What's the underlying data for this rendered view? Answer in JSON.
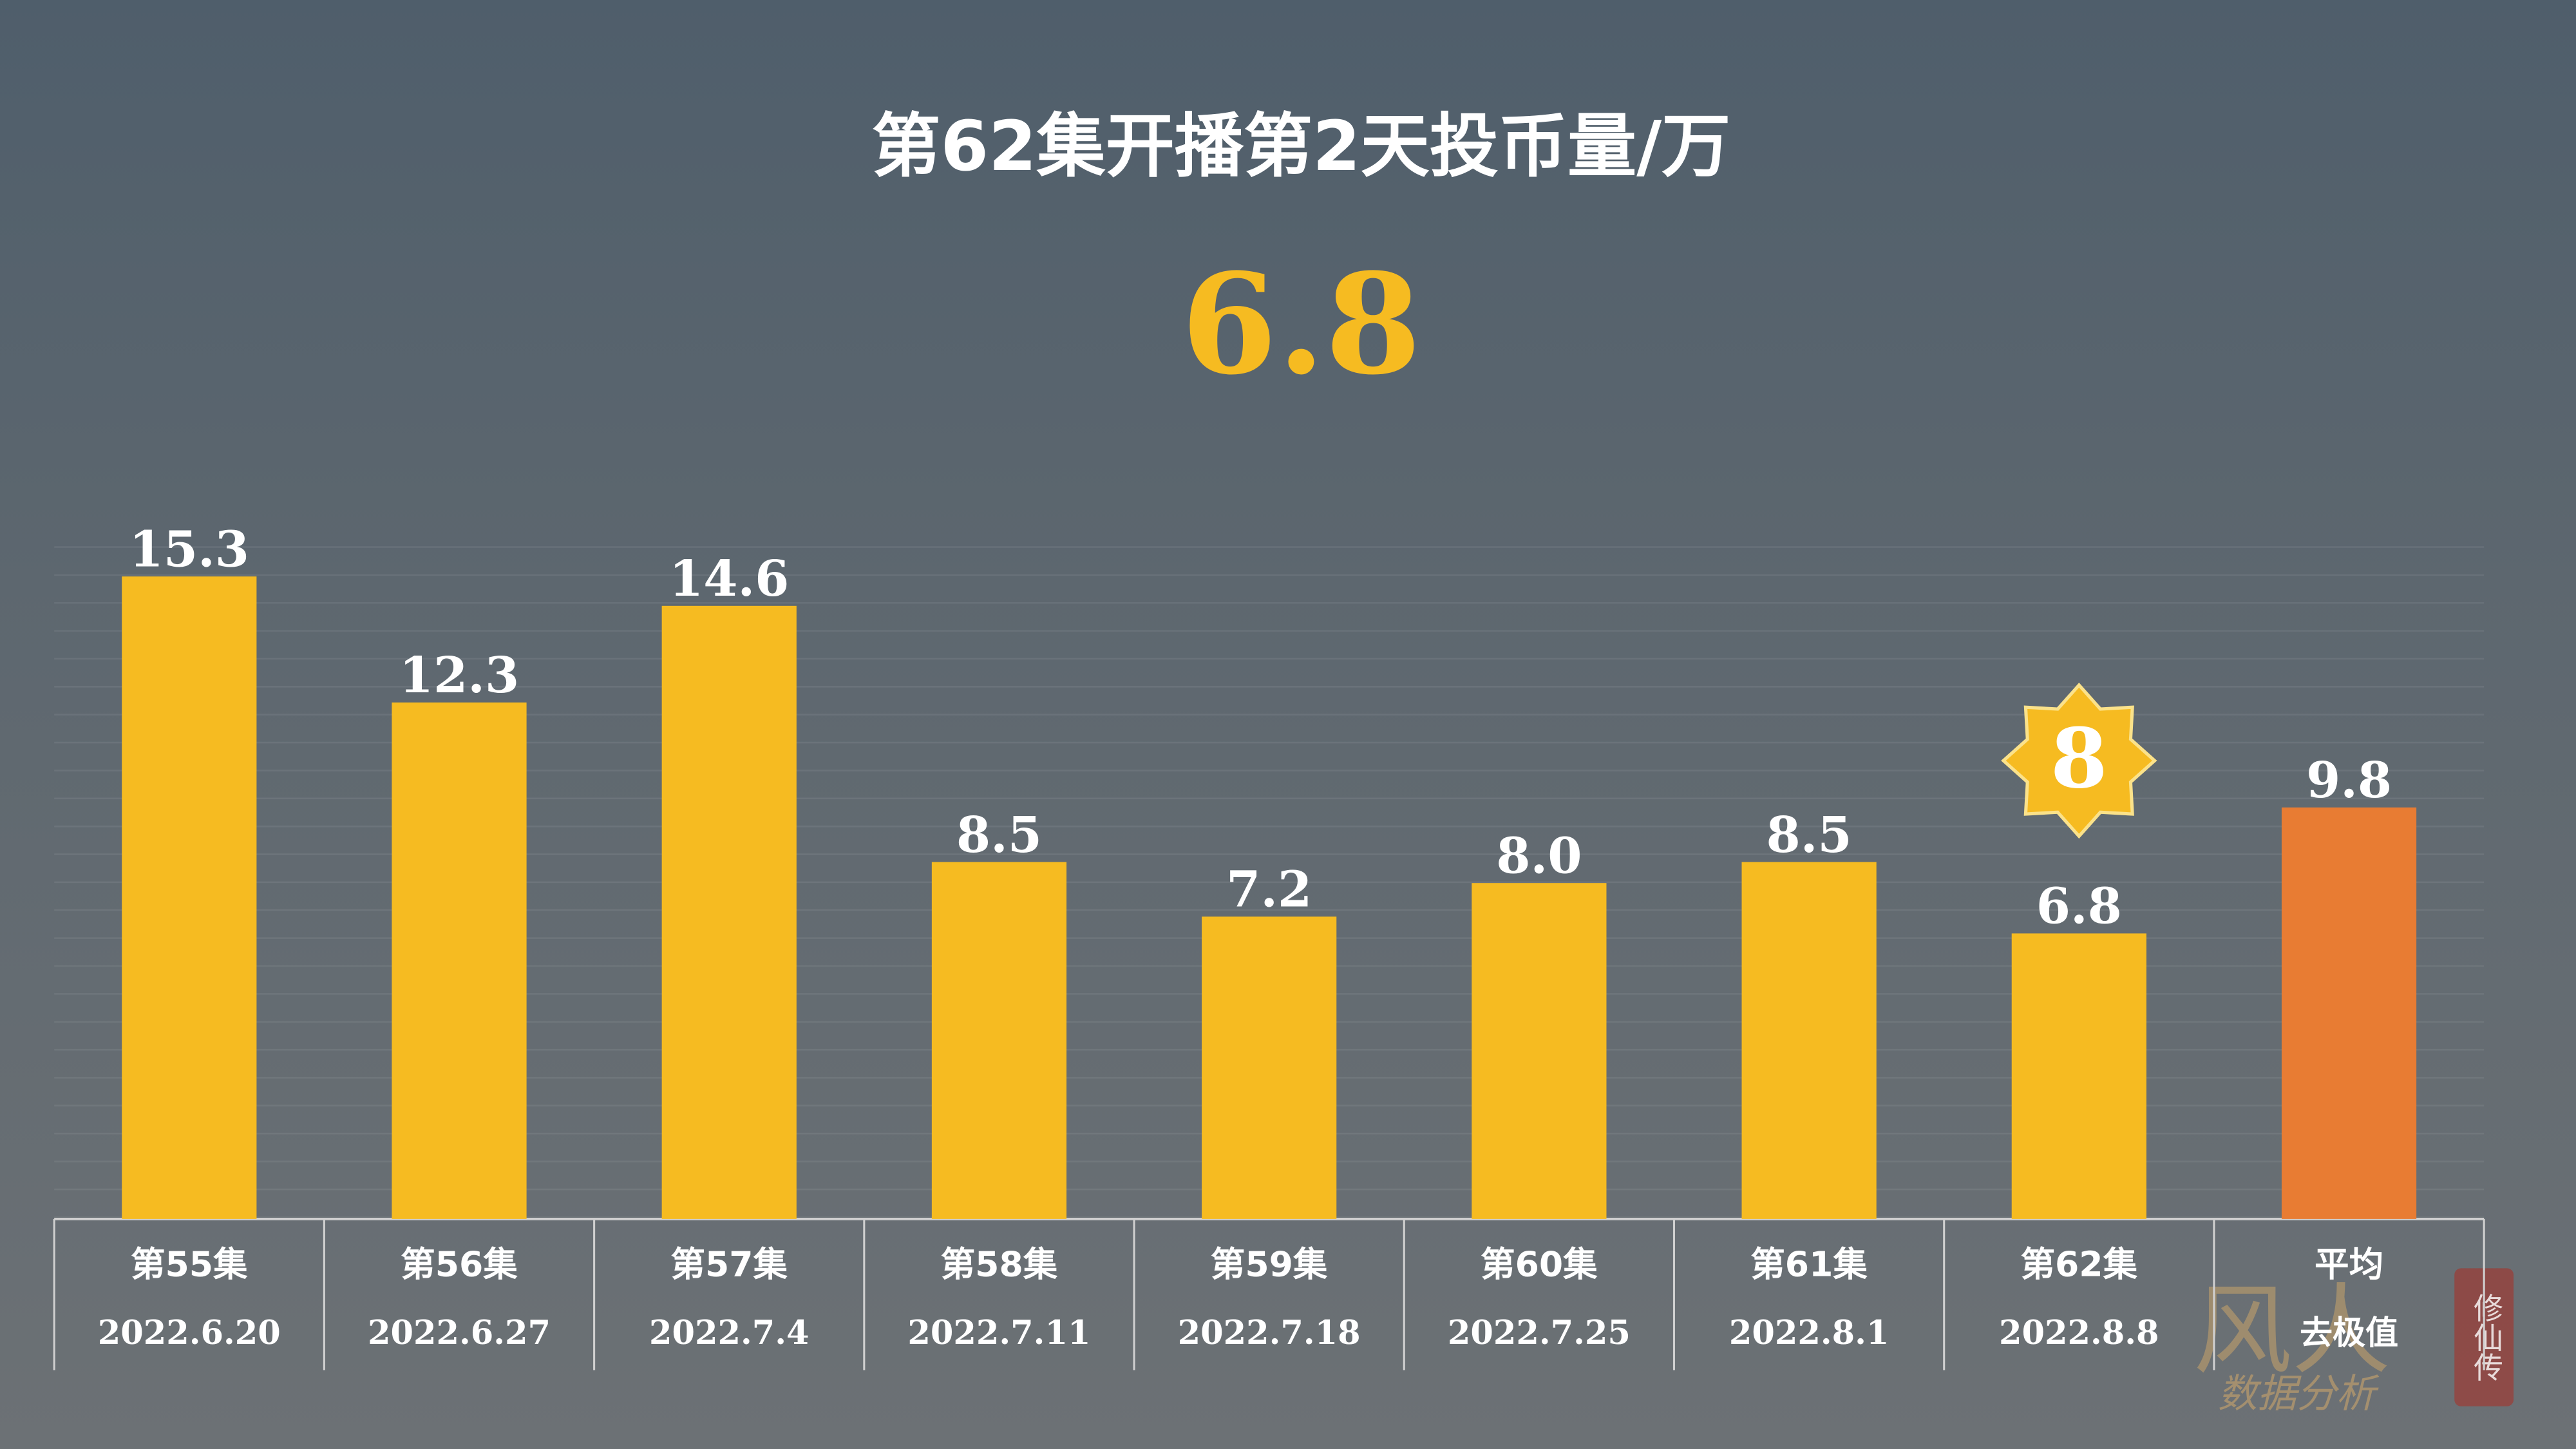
{
  "chart_data": {
    "type": "bar",
    "title": "第62集开播第2天投币量/万",
    "headline": "6.8",
    "categories": [
      "第55集",
      "第56集",
      "第57集",
      "第58集",
      "第59集",
      "第60集",
      "第61集",
      "第62集",
      "平均"
    ],
    "sublabels": [
      "2022.6.20",
      "2022.6.27",
      "2022.7.4",
      "2022.7.11",
      "2022.7.18",
      "2022.7.25",
      "2022.8.1",
      "2022.8.8",
      "去极值"
    ],
    "values": [
      15.3,
      12.3,
      14.6,
      8.5,
      7.2,
      8.0,
      8.5,
      6.8,
      9.8
    ],
    "value_labels": [
      "15.3",
      "12.3",
      "14.6",
      "8.5",
      "7.2",
      "8.0",
      "8.5",
      "6.8",
      "9.8"
    ],
    "colors": [
      "#f6bb21",
      "#f6bb21",
      "#f6bb21",
      "#f6bb21",
      "#f6bb21",
      "#f6bb21",
      "#f6bb21",
      "#f6bb21",
      "#e87c33"
    ],
    "ylim": [
      0,
      16
    ],
    "badge": {
      "category": "第62集",
      "label": "8"
    },
    "watermark": {
      "brand": "风人",
      "subtitle": "数据分析",
      "seal": "修仙传"
    }
  }
}
